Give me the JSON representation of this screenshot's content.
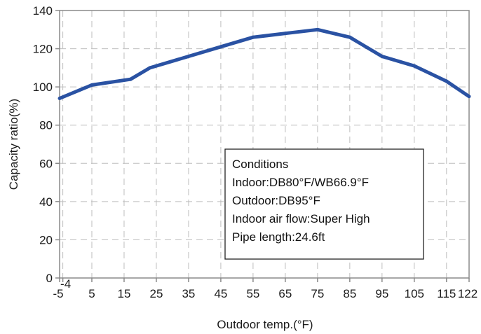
{
  "chart_data": {
    "type": "line",
    "xlabel": "Outdoor temp.(°F)",
    "ylabel": "Capacity ratio(%)",
    "x_ticks": [
      {
        "value": -5,
        "label": "-5"
      },
      {
        "value": -4,
        "label": "-4"
      },
      {
        "value": 5,
        "label": "5"
      },
      {
        "value": 15,
        "label": "15"
      },
      {
        "value": 25,
        "label": "25"
      },
      {
        "value": 35,
        "label": "35"
      },
      {
        "value": 45,
        "label": "45"
      },
      {
        "value": 55,
        "label": "55"
      },
      {
        "value": 65,
        "label": "65"
      },
      {
        "value": 75,
        "label": "75"
      },
      {
        "value": 85,
        "label": "85"
      },
      {
        "value": 95,
        "label": "95"
      },
      {
        "value": 105,
        "label": "105"
      },
      {
        "value": 115,
        "label": "115"
      },
      {
        "value": 122,
        "label": "122"
      }
    ],
    "y_ticks": [
      {
        "value": 0,
        "label": "0"
      },
      {
        "value": 20,
        "label": "20"
      },
      {
        "value": 40,
        "label": "40"
      },
      {
        "value": 60,
        "label": "60"
      },
      {
        "value": 80,
        "label": "80"
      },
      {
        "value": 100,
        "label": "100"
      },
      {
        "value": 120,
        "label": "120"
      },
      {
        "value": 140,
        "label": "140"
      }
    ],
    "xlim": [
      -5,
      122
    ],
    "ylim": [
      0,
      140
    ],
    "grid": true,
    "series": [
      {
        "color": "#2a52a3",
        "x": [
          -5,
          5,
          17,
          23,
          35,
          45,
          55,
          65,
          75,
          85,
          95,
          105,
          115,
          122
        ],
        "y": [
          94,
          101,
          104,
          110,
          116,
          121,
          126,
          128,
          130,
          126,
          116,
          111,
          103,
          95
        ]
      }
    ],
    "annotation": {
      "position": "lower-right",
      "lines": [
        "Conditions",
        "Indoor:DB80°F/WB66.9°F",
        "Outdoor:DB95°F",
        "Indoor air flow:Super High",
        "Pipe length:24.6ft"
      ]
    }
  }
}
